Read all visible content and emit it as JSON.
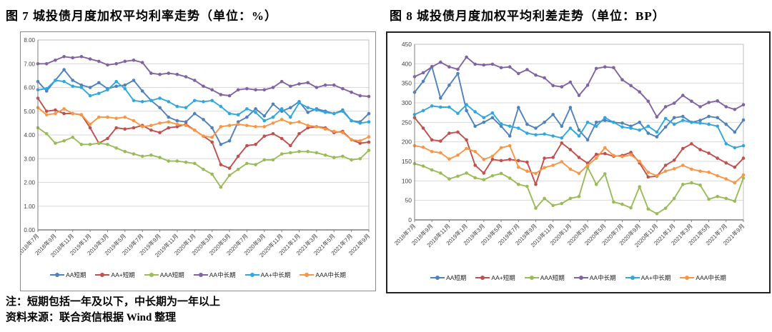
{
  "notes": {
    "line1": "注：短期包括一年及以下，中长期为一年以上",
    "line2": "资料来源：联合资信根据 Wind 整理"
  },
  "chart_data": [
    {
      "type": "line",
      "title": "图 7  城投债月度加权平均利率走势（单位：%）",
      "unit": "%",
      "ylim": [
        0,
        8
      ],
      "ytick_step": 1,
      "ytick_decimals": 2,
      "grid": true,
      "legend_position": "bottom",
      "categories": [
        "2018年7月",
        "2018年8月",
        "2018年9月",
        "2018年10月",
        "2018年11月",
        "2018年12月",
        "2019年1月",
        "2019年2月",
        "2019年3月",
        "2019年4月",
        "2019年5月",
        "2019年6月",
        "2019年7月",
        "2019年8月",
        "2019年9月",
        "2019年10月",
        "2019年11月",
        "2019年12月",
        "2020年1月",
        "2020年2月",
        "2020年3月",
        "2020年4月",
        "2020年5月",
        "2020年6月",
        "2020年7月",
        "2020年8月",
        "2020年9月",
        "2020年10月",
        "2020年11月",
        "2020年12月",
        "2021年1月",
        "2021年2月",
        "2021年3月",
        "2021年4月",
        "2021年5月",
        "2021年6月",
        "2021年7月",
        "2021年8月",
        "2021年9月"
      ],
      "series": [
        {
          "name": "AA短期",
          "color": "#4F81BD",
          "values": [
            6.25,
            5.85,
            6.3,
            6.75,
            6.3,
            6.1,
            6.0,
            6.2,
            5.95,
            6.05,
            6.1,
            6.3,
            5.85,
            5.45,
            5.15,
            4.75,
            4.6,
            4.55,
            4.9,
            4.65,
            4.3,
            3.6,
            3.75,
            4.55,
            4.75,
            5.1,
            4.8,
            5.3,
            5.0,
            5.15,
            5.4,
            4.95,
            5.1,
            5.0,
            4.9,
            5.05,
            4.6,
            4.55,
            4.9
          ]
        },
        {
          "name": "AA+短期",
          "color": "#C0504D",
          "values": [
            5.55,
            5.0,
            5.05,
            4.9,
            4.9,
            4.85,
            4.3,
            3.65,
            3.85,
            4.3,
            4.25,
            4.3,
            4.4,
            4.2,
            4.1,
            4.3,
            4.35,
            4.45,
            4.2,
            3.95,
            3.7,
            2.75,
            2.6,
            3.1,
            3.55,
            3.6,
            3.95,
            4.05,
            3.85,
            3.55,
            4.05,
            4.3,
            4.35,
            4.3,
            4.1,
            4.15,
            3.8,
            3.65,
            3.7
          ]
        },
        {
          "name": "AAA短期",
          "color": "#9BBB59",
          "values": [
            4.3,
            4.05,
            3.65,
            3.75,
            3.9,
            3.6,
            3.6,
            3.65,
            3.6,
            3.45,
            3.3,
            3.2,
            3.1,
            3.15,
            3.05,
            2.9,
            2.9,
            2.85,
            2.8,
            2.55,
            2.35,
            1.8,
            2.3,
            2.55,
            2.8,
            2.75,
            2.95,
            2.95,
            3.2,
            3.25,
            3.3,
            3.3,
            3.25,
            3.15,
            3.05,
            3.1,
            2.95,
            3.0,
            3.35
          ]
        },
        {
          "name": "AA中长期",
          "color": "#8064A2",
          "values": [
            7.0,
            7.0,
            7.15,
            7.3,
            7.25,
            7.3,
            7.2,
            7.1,
            6.95,
            7.0,
            7.1,
            7.15,
            7.05,
            6.6,
            6.55,
            6.6,
            6.55,
            6.45,
            6.3,
            6.05,
            5.9,
            5.7,
            5.65,
            5.9,
            5.95,
            5.9,
            5.9,
            6.0,
            6.25,
            6.05,
            6.15,
            6.2,
            6.0,
            6.1,
            6.1,
            5.95,
            5.8,
            5.65,
            5.62
          ]
        },
        {
          "name": "AA+中长期",
          "color": "#31A8DC",
          "values": [
            5.9,
            5.95,
            6.3,
            6.25,
            6.05,
            6.0,
            5.65,
            5.75,
            5.9,
            6.25,
            5.95,
            5.45,
            5.4,
            5.45,
            5.55,
            5.4,
            5.2,
            5.15,
            5.45,
            5.4,
            5.45,
            5.2,
            4.9,
            4.85,
            5.1,
            4.95,
            4.6,
            4.75,
            5.1,
            4.75,
            5.35,
            5.15,
            5.05,
            4.95,
            4.9,
            5.0,
            4.6,
            4.5,
            4.55
          ]
        },
        {
          "name": "AAA中长期",
          "color": "#F79646",
          "values": [
            5.15,
            4.85,
            4.9,
            5.1,
            4.9,
            4.85,
            4.45,
            4.75,
            4.75,
            4.7,
            4.75,
            4.6,
            4.35,
            4.4,
            4.5,
            4.55,
            4.45,
            4.4,
            4.2,
            3.95,
            3.9,
            4.35,
            4.4,
            4.45,
            4.4,
            4.35,
            4.35,
            4.5,
            4.65,
            4.5,
            4.55,
            4.4,
            4.35,
            4.25,
            4.15,
            4.1,
            3.8,
            3.75,
            3.92
          ]
        }
      ]
    },
    {
      "type": "line",
      "title": "图 8  城投债月度加权平均利差走势（单位：BP）",
      "unit": "BP",
      "ylim": [
        0,
        450
      ],
      "ytick_step": 50,
      "ytick_decimals": 0,
      "grid": true,
      "legend_position": "bottom",
      "categories": [
        "2018年7月",
        "2018年8月",
        "2018年9月",
        "2018年10月",
        "2018年11月",
        "2018年12月",
        "2019年1月",
        "2019年2月",
        "2019年3月",
        "2019年4月",
        "2019年5月",
        "2019年6月",
        "2019年7月",
        "2019年8月",
        "2019年9月",
        "2019年10月",
        "2019年11月",
        "2019年12月",
        "2020年1月",
        "2020年2月",
        "2020年3月",
        "2020年4月",
        "2020年5月",
        "2020年6月",
        "2020年7月",
        "2020年8月",
        "2020年9月",
        "2020年10月",
        "2020年11月",
        "2020年12月",
        "2021年1月",
        "2021年2月",
        "2021年3月",
        "2021年4月",
        "2021年5月",
        "2021年6月",
        "2021年7月",
        "2021年8月",
        "2021年9月"
      ],
      "series": [
        {
          "name": "AA短期",
          "color": "#4F81BD",
          "values": [
            327,
            355,
            393,
            312,
            345,
            375,
            280,
            240,
            250,
            262,
            240,
            215,
            288,
            245,
            235,
            250,
            270,
            240,
            288,
            230,
            205,
            250,
            255,
            250,
            248,
            240,
            250,
            222,
            213,
            238,
            262,
            265,
            250,
            255,
            265,
            262,
            245,
            225,
            256
          ]
        },
        {
          "name": "AA+短期",
          "color": "#C0504D",
          "values": [
            262,
            235,
            205,
            202,
            222,
            225,
            205,
            140,
            120,
            155,
            152,
            155,
            152,
            148,
            91,
            158,
            160,
            197,
            180,
            160,
            145,
            168,
            170,
            163,
            165,
            173,
            146,
            110,
            112,
            140,
            153,
            183,
            195,
            180,
            171,
            158,
            146,
            135,
            158
          ]
        },
        {
          "name": "AAA短期",
          "color": "#9BBB59",
          "values": [
            144,
            138,
            128,
            120,
            105,
            112,
            120,
            108,
            103,
            113,
            119,
            107,
            91,
            86,
            30,
            55,
            37,
            42,
            55,
            60,
            135,
            91,
            118,
            46,
            40,
            31,
            85,
            28,
            16,
            30,
            55,
            91,
            95,
            89,
            53,
            60,
            55,
            48,
            107
          ]
        },
        {
          "name": "AA中长期",
          "color": "#8064A2",
          "values": [
            367,
            377,
            392,
            404,
            392,
            386,
            417,
            399,
            397,
            399,
            390,
            392,
            375,
            385,
            371,
            364,
            344,
            341,
            353,
            319,
            345,
            388,
            392,
            390,
            359,
            344,
            328,
            304,
            264,
            290,
            299,
            319,
            304,
            290,
            301,
            305,
            290,
            283,
            295
          ]
        },
        {
          "name": "AA+中长期",
          "color": "#31A8DC",
          "values": [
            270,
            280,
            292,
            289,
            289,
            273,
            295,
            277,
            262,
            274,
            246,
            240,
            235,
            222,
            218,
            220,
            215,
            210,
            235,
            215,
            250,
            240,
            262,
            250,
            238,
            235,
            230,
            240,
            225,
            260,
            245,
            255,
            250,
            248,
            245,
            240,
            195,
            185,
            190
          ]
        },
        {
          "name": "AAA中长期",
          "color": "#F79646",
          "values": [
            190,
            186,
            175,
            172,
            156,
            166,
            183,
            175,
            155,
            163,
            185,
            190,
            135,
            125,
            119,
            134,
            140,
            149,
            130,
            119,
            140,
            158,
            185,
            165,
            162,
            167,
            150,
            122,
            113,
            125,
            131,
            140,
            130,
            125,
            122,
            113,
            105,
            95,
            115
          ]
        }
      ]
    }
  ]
}
